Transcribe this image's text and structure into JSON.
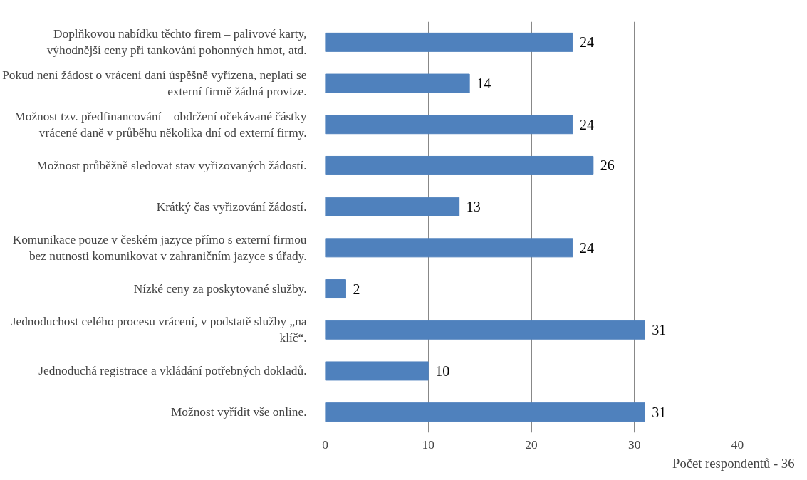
{
  "chart_data": {
    "type": "bar",
    "orientation": "horizontal",
    "xlabel": "Počet respondentů - 36",
    "categories": [
      "Doplňkovou nabídku těchto firem – palivové karty,\nvýhodnější ceny při tankování pohonných hmot, atd.",
      "Pokud není žádost o vrácení daní úspěšně vyřízena, neplatí se\nexterní firmě žádná provize.",
      "Možnost tzv. předfinancování – obdržení očekávané částky\nvrácené daně v průběhu několika dní od externí firmy.",
      "Možnost průběžně sledovat stav vyřizovaných žádostí.",
      "Krátký čas vyřizování žádostí.",
      "Komunikace pouze v českém jazyce přímo s externí firmou\nbez nutnosti komunikovat v zahraničním jazyce s úřady.",
      "Nízké ceny za poskytované služby.",
      "Jednoduchost celého procesu vrácení, v podstatě služby „na\nklíč“.",
      "Jednoduchá registrace a vkládání potřebných dokladů.",
      "Možnost vyřídit vše online."
    ],
    "values": [
      24,
      14,
      24,
      26,
      13,
      24,
      2,
      31,
      10,
      31
    ],
    "color": "#4f81bd",
    "xlim": [
      0,
      40
    ],
    "xticks": [
      0,
      10,
      20,
      30,
      40
    ],
    "grid": "x",
    "data_labels": true
  }
}
